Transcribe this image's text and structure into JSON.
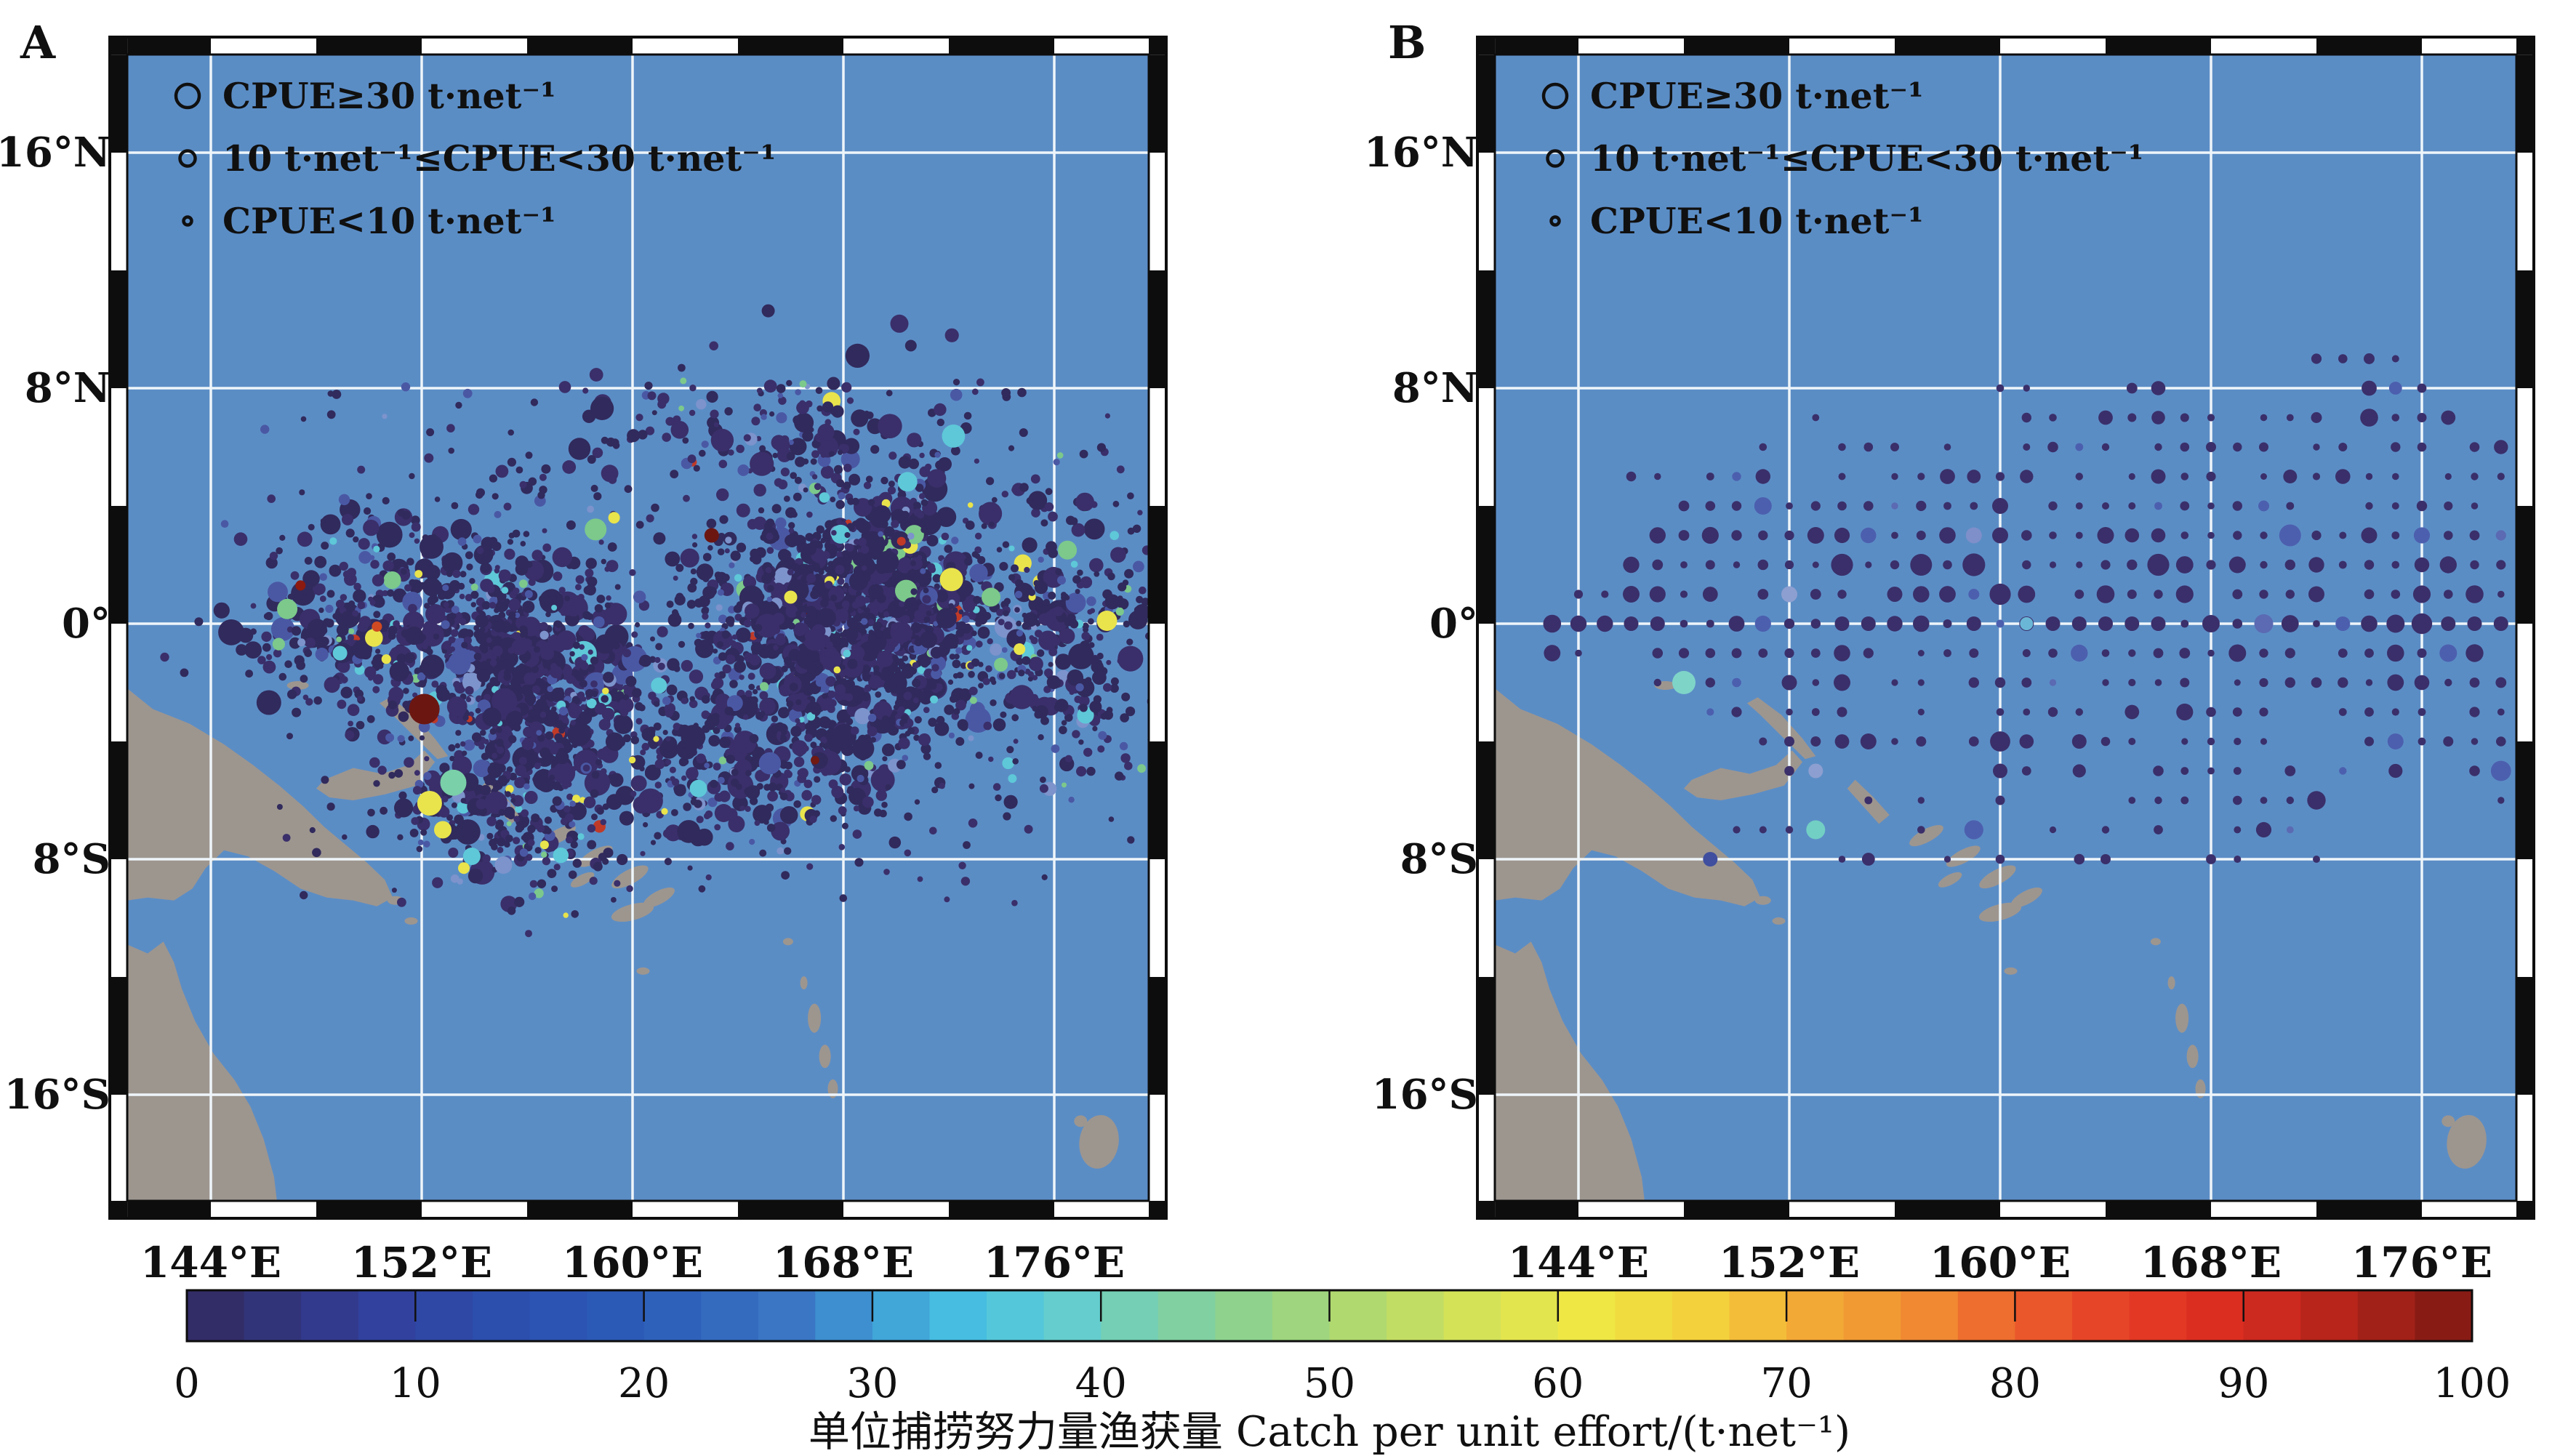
{
  "figure": {
    "panel_labels": [
      "A",
      "B"
    ],
    "legend_items": [
      {
        "symbol": "circle-large",
        "label": "CPUE≥30 t·net⁻¹"
      },
      {
        "symbol": "circle-medium",
        "label": "10 t·net⁻¹≤CPUE<30 t·net⁻¹"
      },
      {
        "symbol": "circle-small",
        "label": "CPUE<10 t·net⁻¹"
      }
    ],
    "lat_ticks": [
      "16°N",
      "8°N",
      "0°",
      "8°S",
      "16°S"
    ],
    "lon_ticks": [
      "144°E",
      "152°E",
      "160°E",
      "168°E",
      "176°E"
    ],
    "colorbar": {
      "ticks": [
        "0",
        "10",
        "20",
        "30",
        "40",
        "50",
        "60",
        "70",
        "80",
        "90",
        "100"
      ],
      "caption": "单位捕捞努力量渔获量 Catch per unit effort/(t·net⁻¹)"
    }
  },
  "style": {
    "ocean": "#5b8dc5",
    "land": "#9d968f",
    "grid_line": "#eef5fa",
    "frame_dark": "#0d0d0d",
    "frame_light": "#ffffff",
    "dot_navy": "#312a5c",
    "dot_navy2": "#3a2f6a",
    "dot_blue": "#4a58a4",
    "dot_lightblue": "#7d93cc",
    "dot_cyan": "#5ec8d8",
    "dot_green": "#7cc98b",
    "dot_yellow": "#e9e44c",
    "dot_red": "#c03a28",
    "dot_darkred": "#701a12",
    "teal": "#7fd4c8"
  },
  "colormap_stops": [
    [
      0,
      "#322a5e"
    ],
    [
      8,
      "#323f9a"
    ],
    [
      14,
      "#2c4fae"
    ],
    [
      20,
      "#2b5cb8"
    ],
    [
      26,
      "#3a74c3"
    ],
    [
      30,
      "#3f9bd4"
    ],
    [
      34,
      "#46bfe2"
    ],
    [
      38,
      "#61cdd4"
    ],
    [
      42,
      "#78cfae"
    ],
    [
      47,
      "#92d388"
    ],
    [
      52,
      "#b5da6b"
    ],
    [
      57,
      "#d9e355"
    ],
    [
      61,
      "#efe844"
    ],
    [
      66,
      "#f3d33c"
    ],
    [
      71,
      "#f3ab36"
    ],
    [
      76,
      "#f08c32"
    ],
    [
      80,
      "#ec602c"
    ],
    [
      84,
      "#e64327"
    ],
    [
      88,
      "#df2f22"
    ],
    [
      92,
      "#c7281e"
    ],
    [
      96,
      "#a32118"
    ],
    [
      100,
      "#7c1a13"
    ]
  ],
  "scatter_generation": {
    "seed": 20240613,
    "panel_a": {
      "clusters": [
        {
          "n": 1050,
          "lon": 155.8,
          "lat": -1.6,
          "slon": 2.9,
          "slat": 2.3,
          "shear": -0.55
        },
        {
          "n": 1500,
          "lon": 168.6,
          "lat": 0.4,
          "slon": 2.9,
          "slat": 2.1,
          "shear": 0
        },
        {
          "n": 300,
          "lon": 165.0,
          "lat": -4.6,
          "slon": 2.8,
          "slat": 1.5,
          "shear": 0.3
        },
        {
          "n": 240,
          "lon": 154.6,
          "lat": -6.6,
          "slon": 1.9,
          "slat": 1.4,
          "shear": -0.3
        },
        {
          "n": 140,
          "lon": 165.5,
          "lat": 6.6,
          "slon": 4.8,
          "slat": 1.2,
          "shear": 0
        },
        {
          "n": 150,
          "lon": 148.6,
          "lat": -0.1,
          "slon": 1.9,
          "slat": 1.5,
          "shear": 0
        },
        {
          "n": 280,
          "lon": 176.6,
          "lat": -0.6,
          "slon": 1.7,
          "slat": 2.5,
          "shear": 0
        }
      ],
      "halo": {
        "n": 300,
        "lon_min": 145.5,
        "lon_max": 178.5,
        "lat_min": -9.5,
        "lat_max": 8.2
      },
      "color_probs": [
        [
          "dot_navy",
          0.45
        ],
        [
          "dot_navy2",
          0.35
        ],
        [
          "dot_blue",
          0.07
        ],
        [
          "dot_lightblue",
          0.018
        ],
        [
          "dot_cyan",
          0.018
        ],
        [
          "dot_green",
          0.012
        ],
        [
          "dot_yellow",
          0.009
        ],
        [
          "dot_red",
          0.004
        ],
        [
          "dot_darkred",
          0.002
        ]
      ]
    },
    "panel_b": {
      "rows": {
        "9": {
          "seg": [
            [
              172,
              175
            ]
          ],
          "d": 1
        },
        "8": {
          "seg": [
            [
              160,
              161
            ],
            [
              165,
              166
            ],
            [
              174,
              176
            ]
          ],
          "d": 1
        },
        "7": {
          "seg": [
            [
              152,
              153
            ],
            [
              161,
              180
            ]
          ],
          "d": 0.72
        },
        "6": {
          "seg": [
            [
              149,
              158
            ],
            [
              161,
              180
            ]
          ],
          "d": 0.7
        },
        "5": {
          "seg": [
            [
              146,
              147
            ],
            [
              149,
              163
            ],
            [
              165,
              180
            ]
          ],
          "d": 0.8
        },
        "4": {
          "seg": [
            [
              148,
              180
            ]
          ],
          "d": 0.85
        },
        "3": {
          "seg": [
            [
              147,
              180
            ]
          ],
          "d": 0.9
        },
        "2": {
          "seg": [
            [
              146,
              180
            ]
          ],
          "d": 0.9
        },
        "1": {
          "seg": [
            [
              144,
              180
            ]
          ],
          "d": 0.9
        },
        "0": {
          "seg": [
            [
              143,
              180
            ]
          ],
          "d": 0.95
        },
        "-1": {
          "seg": [
            [
              143,
              145
            ],
            [
              147,
              180
            ]
          ],
          "d": 0.9
        },
        "-2": {
          "seg": [
            [
              147,
              180
            ]
          ],
          "d": 0.85
        },
        "-3": {
          "seg": [
            [
              149,
              180
            ]
          ],
          "d": 0.8
        },
        "-4": {
          "seg": [
            [
              151,
              180
            ]
          ],
          "d": 0.7
        },
        "-5": {
          "seg": [
            [
              152,
              176
            ],
            [
              178,
              180
            ]
          ],
          "d": 0.65
        },
        "-6": {
          "seg": [
            [
              153,
              172
            ],
            [
              177,
              179
            ]
          ],
          "d": 0.5
        },
        "-7": {
          "seg": [
            [
              150,
              171
            ]
          ],
          "d": 0.45
        },
        "-8": {
          "seg": [
            [
              153,
              169
            ],
            [
              172,
              174
            ]
          ],
          "d": 0.4
        }
      }
    }
  },
  "highlight_points_a": [
    [
      152.1,
      -2.9,
      21,
      "#6c1612"
    ],
    [
      146.9,
      0.5,
      14,
      "#7cc98b"
    ],
    [
      147.4,
      1.3,
      7,
      "#8c1a10"
    ],
    [
      150.3,
      -0.1,
      7,
      "#cf4a22"
    ],
    [
      152.3,
      -6.1,
      17,
      "#e9e44c"
    ],
    [
      153.2,
      -5.4,
      18,
      "#7ad0a8"
    ],
    [
      152.8,
      -7.0,
      12,
      "#e9e44c"
    ],
    [
      153.9,
      -7.9,
      12,
      "#5ec8d8"
    ],
    [
      153.6,
      -8.3,
      8,
      "#e9e44c"
    ],
    [
      155.1,
      -8.2,
      12,
      "#7d93cc"
    ],
    [
      158.6,
      3.2,
      15,
      "#7cc98b"
    ],
    [
      159.3,
      3.6,
      8,
      "#e9e44c"
    ],
    [
      162.5,
      -5.6,
      12,
      "#5ec8d8"
    ],
    [
      163.0,
      3.0,
      10,
      "#6c1612"
    ],
    [
      172.1,
      1.5,
      16,
      "#e9e44c"
    ],
    [
      173.6,
      0.9,
      13,
      "#7cc98b"
    ],
    [
      170.2,
      2.8,
      6,
      "#c03a28"
    ],
    [
      176.5,
      2.5,
      13,
      "#7cc98b"
    ],
    [
      178.0,
      0.1,
      14,
      "#e9e44c"
    ],
    [
      166.0,
      0.9,
      9,
      "#e9e44c"
    ],
    [
      161.0,
      -2.1,
      11,
      "#5ec8d8"
    ],
    [
      148.9,
      -1.0,
      10,
      "#5ec8d8"
    ]
  ],
  "special_points_b": [
    [
      148,
      -2,
      16,
      "#7fd4c8"
    ],
    [
      153,
      -7,
      13,
      "#72cfc4"
    ],
    [
      152,
      1,
      11,
      "#8d9fd0"
    ],
    [
      153,
      -5,
      10,
      "#8d9fd0"
    ],
    [
      159,
      3,
      11,
      "#7e8fc9"
    ],
    [
      161,
      0,
      9,
      "#6ab6d6"
    ],
    [
      170,
      0,
      13,
      "#5b6ab2"
    ],
    [
      177,
      -1,
      12,
      "#4c5fae"
    ],
    [
      175,
      -4,
      11,
      "#4c5fae"
    ],
    [
      151,
      4,
      12,
      "#4c5fae"
    ],
    [
      149,
      -8,
      10,
      "#3f4e9e"
    ]
  ],
  "chart_data": {
    "type": "scatter",
    "panels": [
      {
        "id": "A",
        "content": "Individual purse-seine CPUE records; each dot one record, dot size = CPUE class (see size legend), dot color = CPUE value on 0-100 colorbar; dense clouds span roughly 146°E-179°E and 8°N-10°S",
        "lon_extent_deg_e": [
          140.8,
          179.6
        ],
        "lat_extent_deg": [
          -19.6,
          19.3
        ]
      },
      {
        "id": "B",
        "content": "CPUE aggregated on a regular 1°×1° grid; dots on integer lat/lon nodes from about 143°E-180°E and 9°N-8°S, largest dots along the equator",
        "lon_extent_deg_e": [
          140.8,
          179.6
        ],
        "lat_extent_deg": [
          -19.6,
          19.3
        ]
      }
    ],
    "lon_gridlines_deg_e": [
      144,
      152,
      160,
      168,
      176
    ],
    "lat_gridlines_deg": [
      16,
      8,
      0,
      -8,
      -16
    ],
    "size_classes": [
      "CPUE≥30 t·net⁻¹",
      "10 t·net⁻¹≤CPUE<30 t·net⁻¹",
      "CPUE<10 t·net⁻¹"
    ],
    "colorbar": {
      "label": "单位捕捞努力量渔获量 Catch per unit effort/(t·net⁻¹)",
      "min": 0,
      "max": 100,
      "ticks": [
        0,
        10,
        20,
        30,
        40,
        50,
        60,
        70,
        80,
        90,
        100
      ],
      "segments": 40
    }
  }
}
